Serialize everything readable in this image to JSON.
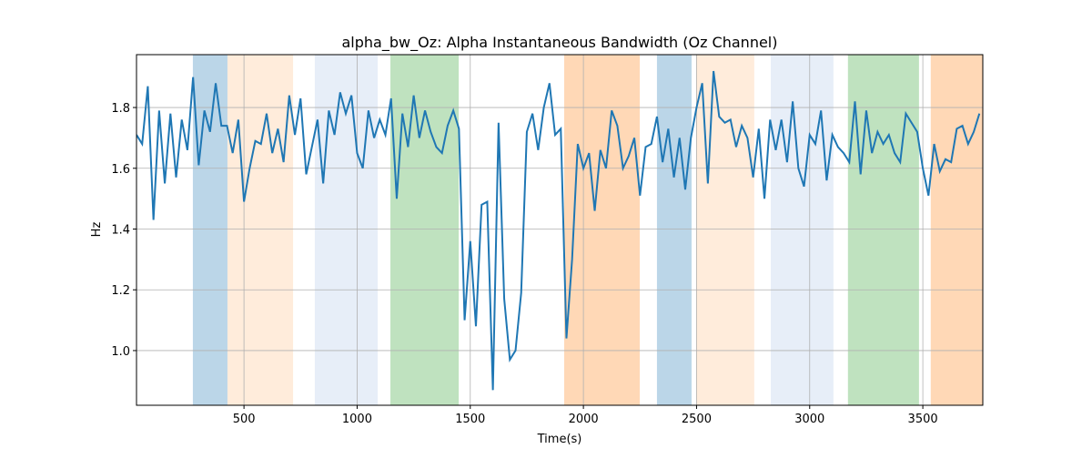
{
  "chart_data": {
    "type": "line",
    "title": "alpha_bw_Oz: Alpha Instantaneous Bandwidth (Oz Channel)",
    "x_label": "Time(s)",
    "y_label": "Hz",
    "xlim": [
      25,
      3765
    ],
    "ylim": [
      0.82,
      1.974
    ],
    "xticks": [
      500,
      1000,
      1500,
      2000,
      2500,
      3000,
      3500
    ],
    "yticks": [
      {
        "value": 1,
        "label": "1.0"
      },
      1.2,
      1.4,
      1.6,
      1.8
    ],
    "grid": true,
    "spans": [
      {
        "start": 274,
        "end": 427,
        "color": "#1f77b4",
        "opacity": 0.3
      },
      {
        "start": 427,
        "end": 717,
        "color": "#ff7f0e",
        "opacity": 0.15
      },
      {
        "start": 813,
        "end": 1091,
        "color": "#aec7e8",
        "opacity": 0.3
      },
      {
        "start": 1147,
        "end": 1449,
        "color": "#2ca02c",
        "opacity": 0.3
      },
      {
        "start": 1915,
        "end": 2249,
        "color": "#ff7f0e",
        "opacity": 0.3
      },
      {
        "start": 2325,
        "end": 2478,
        "color": "#1f77b4",
        "opacity": 0.3
      },
      {
        "start": 2498,
        "end": 2755,
        "color": "#ff7f0e",
        "opacity": 0.15
      },
      {
        "start": 2828,
        "end": 3105,
        "color": "#aec7e8",
        "opacity": 0.3
      },
      {
        "start": 3169,
        "end": 3483,
        "color": "#2ca02c",
        "opacity": 0.3
      },
      {
        "start": 3535,
        "end": 3765,
        "color": "#ff7f0e",
        "opacity": 0.3
      }
    ],
    "x": [
      25,
      50,
      75,
      100,
      125,
      150,
      175,
      200,
      225,
      250,
      275,
      300,
      325,
      350,
      375,
      400,
      425,
      450,
      475,
      500,
      525,
      550,
      575,
      600,
      625,
      650,
      675,
      700,
      725,
      750,
      775,
      800,
      825,
      850,
      875,
      900,
      925,
      950,
      975,
      1000,
      1025,
      1050,
      1075,
      1100,
      1125,
      1150,
      1175,
      1200,
      1225,
      1250,
      1275,
      1300,
      1325,
      1350,
      1375,
      1400,
      1425,
      1450,
      1475,
      1500,
      1525,
      1550,
      1575,
      1600,
      1625,
      1650,
      1675,
      1700,
      1725,
      1750,
      1775,
      1800,
      1825,
      1850,
      1875,
      1900,
      1925,
      1950,
      1975,
      2000,
      2025,
      2050,
      2075,
      2100,
      2125,
      2150,
      2175,
      2200,
      2225,
      2250,
      2275,
      2300,
      2325,
      2350,
      2375,
      2400,
      2425,
      2450,
      2475,
      2500,
      2525,
      2550,
      2575,
      2600,
      2625,
      2650,
      2675,
      2700,
      2725,
      2750,
      2775,
      2800,
      2825,
      2850,
      2875,
      2900,
      2925,
      2950,
      2975,
      3000,
      3025,
      3050,
      3075,
      3100,
      3125,
      3150,
      3175,
      3200,
      3225,
      3250,
      3275,
      3300,
      3325,
      3350,
      3375,
      3400,
      3425,
      3450,
      3475,
      3500,
      3525,
      3550,
      3575,
      3600,
      3625,
      3650,
      3675,
      3700,
      3725,
      3750
    ],
    "series": [
      {
        "name": "alpha_bw_Oz",
        "color": "#1f77b4",
        "values": [
          1.71,
          1.68,
          1.87,
          1.43,
          1.79,
          1.55,
          1.78,
          1.57,
          1.76,
          1.66,
          1.9,
          1.61,
          1.79,
          1.72,
          1.88,
          1.74,
          1.74,
          1.65,
          1.76,
          1.49,
          1.6,
          1.69,
          1.68,
          1.78,
          1.65,
          1.73,
          1.62,
          1.84,
          1.71,
          1.83,
          1.58,
          1.67,
          1.76,
          1.55,
          1.79,
          1.71,
          1.85,
          1.78,
          1.84,
          1.65,
          1.6,
          1.79,
          1.7,
          1.76,
          1.71,
          1.83,
          1.5,
          1.78,
          1.67,
          1.84,
          1.7,
          1.79,
          1.72,
          1.67,
          1.65,
          1.74,
          1.79,
          1.73,
          1.1,
          1.36,
          1.08,
          1.48,
          1.49,
          0.87,
          1.75,
          1.17,
          0.97,
          1.0,
          1.19,
          1.72,
          1.78,
          1.66,
          1.8,
          1.88,
          1.71,
          1.73,
          1.04,
          1.3,
          1.68,
          1.6,
          1.65,
          1.46,
          1.66,
          1.6,
          1.79,
          1.74,
          1.6,
          1.64,
          1.7,
          1.51,
          1.67,
          1.68,
          1.77,
          1.62,
          1.73,
          1.57,
          1.7,
          1.53,
          1.7,
          1.8,
          1.88,
          1.55,
          1.92,
          1.77,
          1.75,
          1.76,
          1.67,
          1.74,
          1.7,
          1.57,
          1.73,
          1.5,
          1.76,
          1.66,
          1.76,
          1.62,
          1.82,
          1.6,
          1.54,
          1.71,
          1.68,
          1.79,
          1.56,
          1.71,
          1.67,
          1.65,
          1.62,
          1.82,
          1.58,
          1.79,
          1.65,
          1.72,
          1.68,
          1.71,
          1.65,
          1.62,
          1.78,
          1.75,
          1.72,
          1.6,
          1.51,
          1.68,
          1.59,
          1.63,
          1.62,
          1.73,
          1.74,
          1.68,
          1.72,
          1.78
        ]
      }
    ]
  }
}
